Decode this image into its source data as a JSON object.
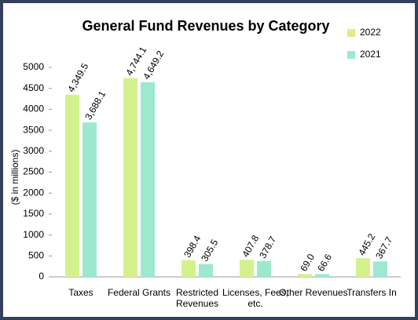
{
  "chart_data": {
    "type": "bar",
    "title": "General Fund Revenues by Category",
    "y_label": "($ in millions)",
    "categories": [
      "Taxes",
      "Federal Grants",
      "Restricted Revenues",
      "Licenses, Fees, etc.",
      "Other Revenues",
      "Transfers In"
    ],
    "series": [
      {
        "name": "2022",
        "color": "#d3f28e",
        "values": [
          4349.5,
          4744.1,
          398.4,
          407.8,
          69.0,
          445.2
        ],
        "value_labels": [
          "4,349.5",
          "4,744.1",
          "398.4",
          "407.8",
          "69.0",
          "445.2"
        ]
      },
      {
        "name": "2021",
        "color": "#9ce9cf",
        "values": [
          3688.1,
          4649.2,
          305.5,
          378.7,
          66.6,
          367.7
        ],
        "value_labels": [
          "3,688.1",
          "4,649.2",
          "305.5",
          "378.7",
          "66.6",
          "367.7"
        ]
      }
    ],
    "ylim": [
      0,
      5000
    ],
    "yticks": [
      0,
      500,
      1000,
      1500,
      2000,
      2500,
      3000,
      3500,
      4000,
      4500,
      5000
    ],
    "legend": "top-right",
    "grid": false
  }
}
